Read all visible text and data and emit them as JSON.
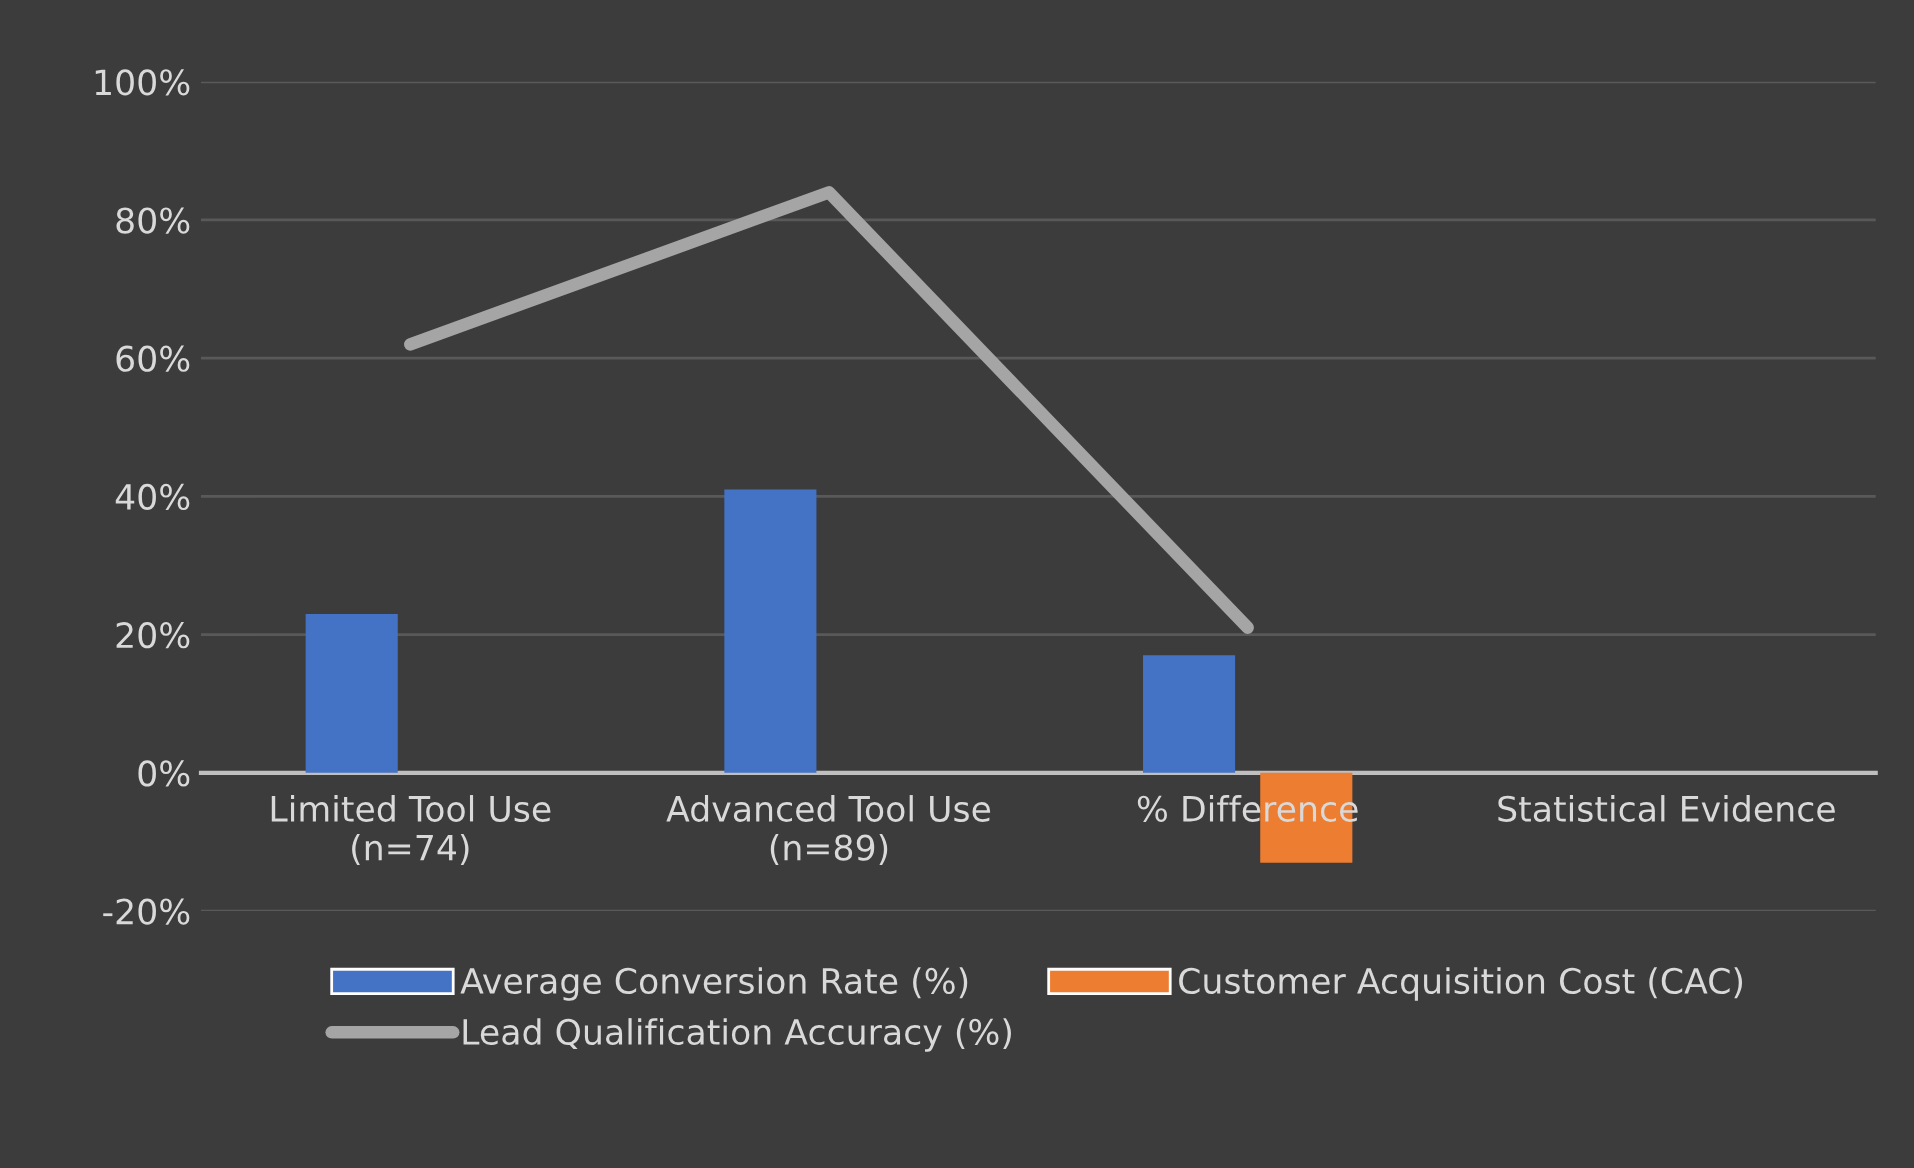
{
  "chart_data": {
    "type": "bar",
    "categories": [
      "Limited Tool Use\n(n=74)",
      "Advanced Tool Use\n(n=89)",
      "% Difference",
      "Statistical Evidence"
    ],
    "series": [
      {
        "name": "Average Conversion Rate (%)",
        "color": "#4472c4",
        "values": [
          23,
          41,
          17,
          null
        ]
      },
      {
        "name": "Customer Acquisition Cost (CAC)",
        "color": "#ed7d31",
        "values": [
          null,
          null,
          -13,
          null
        ]
      },
      {
        "name": "Lead Qualification Accuracy (%)",
        "type": "line",
        "color": "#a5a5a5",
        "values": [
          62,
          84,
          21,
          null
        ]
      }
    ],
    "ylim": [
      -20,
      100
    ],
    "yticks": [
      {
        "value": -20,
        "label": "-20%"
      },
      {
        "value": 0,
        "label": "0%"
      },
      {
        "value": 20,
        "label": "20%"
      },
      {
        "value": 40,
        "label": "40%"
      },
      {
        "value": 60,
        "label": "60%"
      },
      {
        "value": 80,
        "label": "80%"
      },
      {
        "value": 100,
        "label": "100%"
      }
    ],
    "grid": "y",
    "legend": "bottom",
    "marker": "none",
    "line_style": "solid"
  }
}
